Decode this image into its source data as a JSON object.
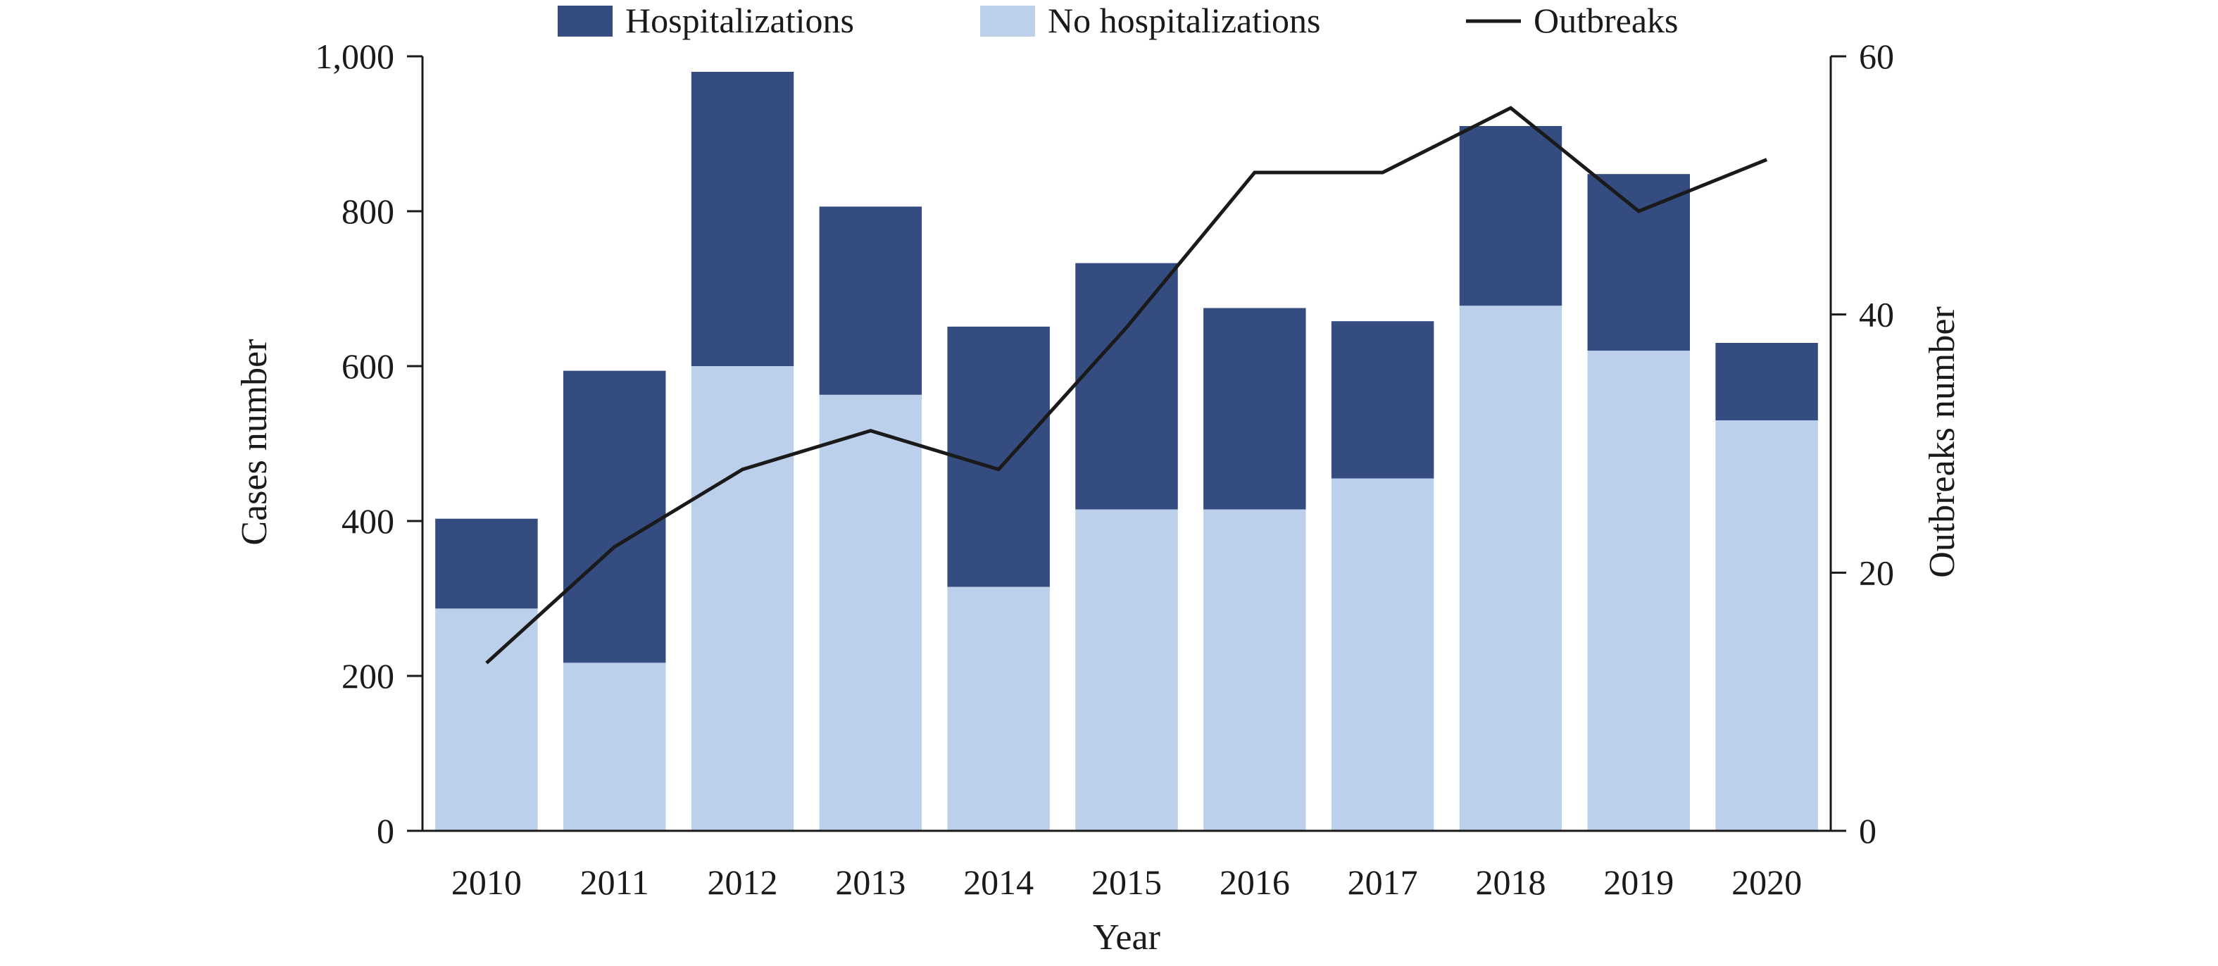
{
  "chart_data": {
    "type": "bar",
    "stacked": true,
    "categories": [
      "2010",
      "2011",
      "2012",
      "2013",
      "2014",
      "2015",
      "2016",
      "2017",
      "2018",
      "2019",
      "2020"
    ],
    "series": [
      {
        "name": "No hospitalizations",
        "type": "bar",
        "axis": "left",
        "color": "#bcd0eb",
        "values": [
          287,
          217,
          600,
          563,
          315,
          415,
          415,
          455,
          678,
          620,
          530
        ]
      },
      {
        "name": "Hospitalizations",
        "type": "bar",
        "axis": "left",
        "color": "#344c80",
        "values": [
          116,
          377,
          380,
          243,
          336,
          318,
          260,
          203,
          232,
          228,
          100
        ]
      },
      {
        "name": "Outbreaks",
        "type": "line",
        "axis": "right",
        "color": "#1a1a1a",
        "values": [
          13,
          22,
          28,
          31,
          28,
          39,
          51,
          51,
          56,
          48,
          52
        ]
      }
    ],
    "xlabel": "Year",
    "ylabel": "Cases number",
    "y2label": "Outbreaks number",
    "ylim": [
      0,
      1000
    ],
    "y2lim": [
      0,
      60
    ],
    "yticks": [
      0,
      200,
      400,
      600,
      800,
      1000
    ],
    "ytick_labels": [
      "0",
      "200",
      "400",
      "600",
      "800",
      "1,000"
    ],
    "y2ticks": [
      0,
      20,
      40,
      60
    ],
    "y2tick_labels": [
      "0",
      "20",
      "40",
      "60"
    ],
    "legend": {
      "placement": "top",
      "entries": [
        {
          "label": "Hospitalizations",
          "kind": "box",
          "color": "#344c80"
        },
        {
          "label": "No hospitalizations",
          "kind": "box",
          "color": "#bcd0eb"
        },
        {
          "label": "Outbreaks",
          "kind": "line",
          "color": "#1a1a1a"
        }
      ]
    },
    "grid": false
  }
}
